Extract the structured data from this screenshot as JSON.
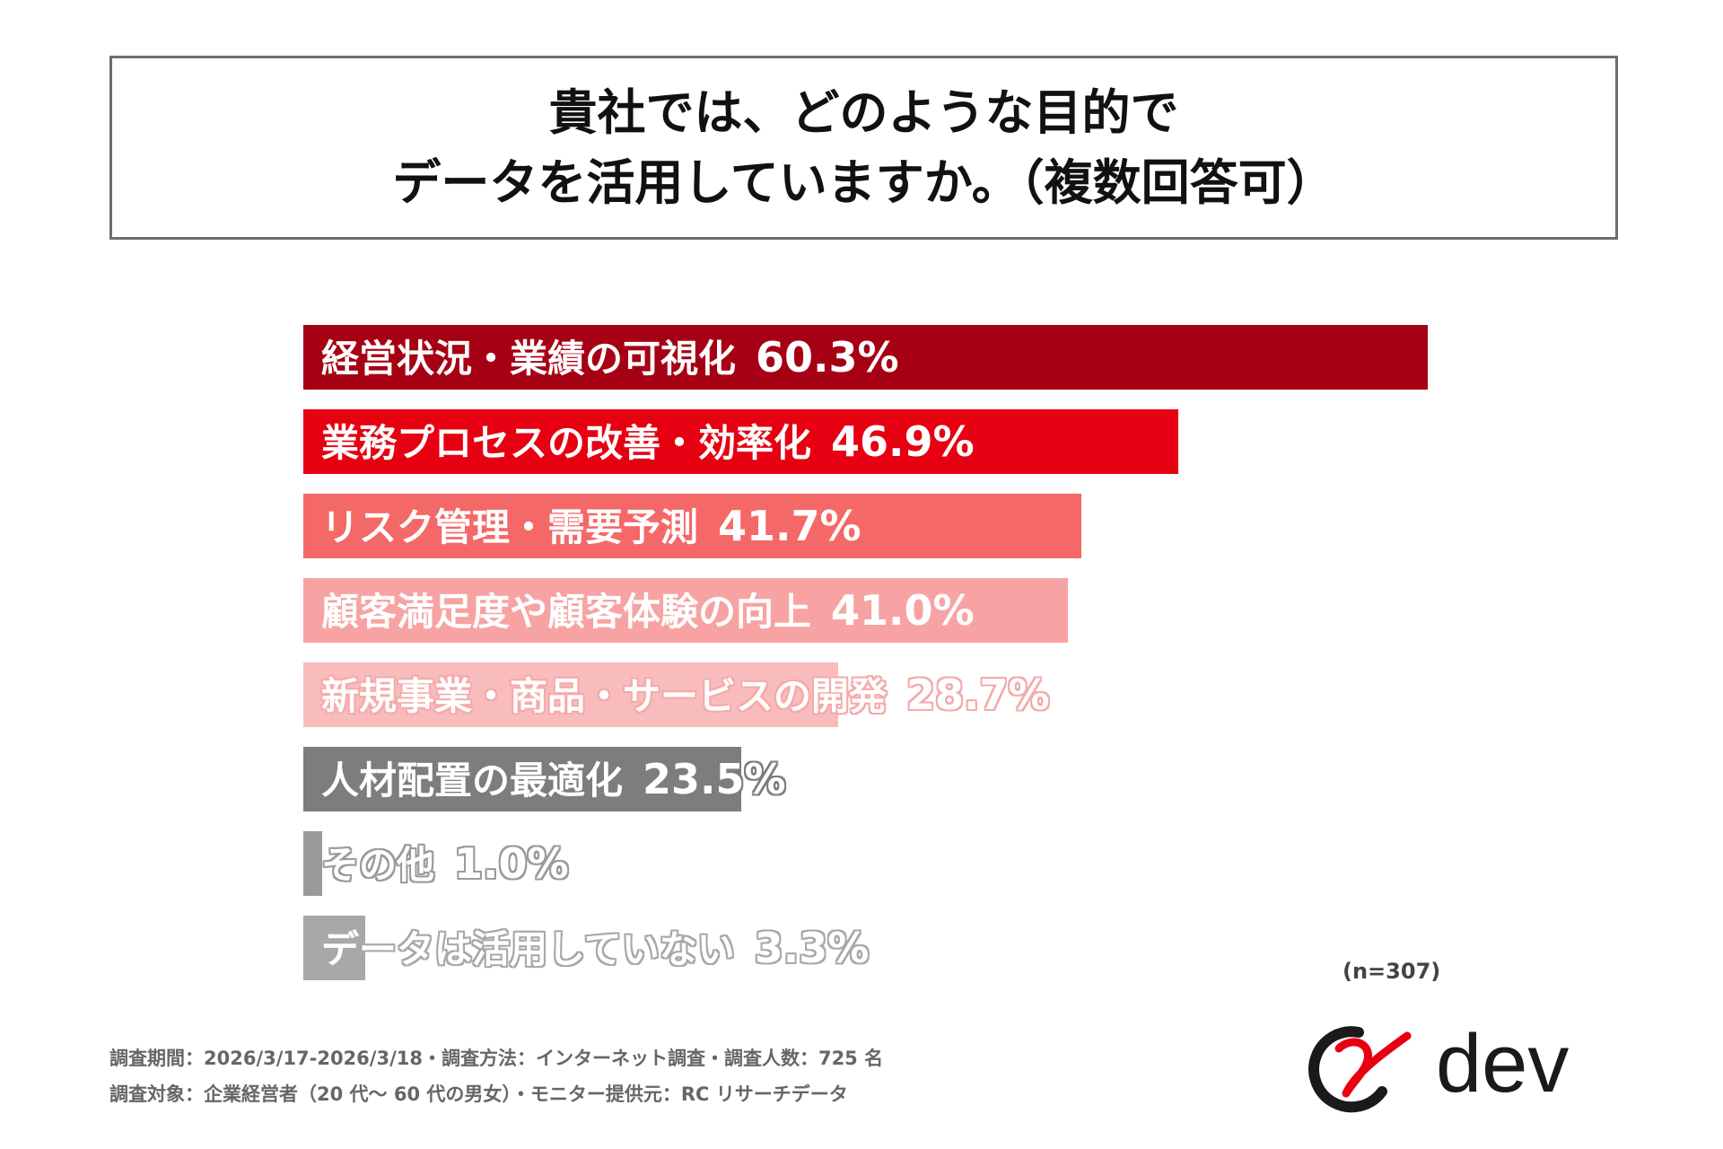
{
  "title": {
    "line1": "貴社では、どのような目的で",
    "line2": "データを活用していますか。（複数回答可）"
  },
  "chart_data": {
    "type": "bar",
    "orientation": "horizontal",
    "title": "貴社では、どのような目的でデータを活用していますか。（複数回答可）",
    "categories": [
      "経営状況・業績の可視化",
      "業務プロセスの改善・効率化",
      "リスク管理・需要予測",
      "顧客満足度や顧客体験の向上",
      "新規事業・商品・サービスの開発",
      "人材配置の最適化",
      "その他",
      "データは活用していない"
    ],
    "values": [
      60.3,
      46.9,
      41.7,
      41.0,
      28.7,
      23.5,
      1.0,
      3.3
    ],
    "value_labels": [
      "60.3%",
      "46.9%",
      "41.7%",
      "41.0%",
      "28.7%",
      "23.5%",
      "1.0%",
      "3.3%"
    ],
    "colors": [
      "#a60014",
      "#e60012",
      "#f56868",
      "#f7a3a3",
      "#f9bcbc",
      "#7d7d7d",
      "#9a9a9a",
      "#a8a8a8"
    ],
    "outline_colors": [
      "",
      "",
      "",
      "",
      "#f5aaaa",
      "#7d7d7d",
      "#9a9a9a",
      "#a8a8a8"
    ],
    "xlim": [
      0,
      100
    ],
    "xlabel": "",
    "ylabel": ""
  },
  "sample_size": "(n=307)",
  "footnotes": {
    "line1": "調査期間：2026/3/17-2026/3/18・調査方法：インターネット調査・調査人数：725 名",
    "line2": "調査対象：企業経営者（20 代～ 60 代の男女）・モニター提供元：RC リサーチデータ"
  },
  "logo": {
    "text": "dev",
    "accent_color": "#e60012"
  }
}
